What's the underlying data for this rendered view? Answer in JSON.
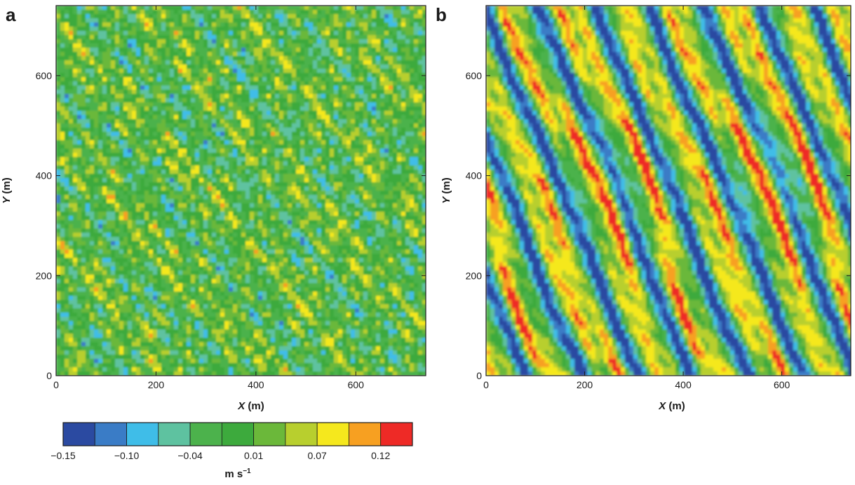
{
  "figure": {
    "panels": [
      {
        "letter": "a"
      },
      {
        "letter": "b"
      }
    ],
    "colorbar": {
      "tick_labels": [
        "−0.15",
        "−0.10",
        "−0.04",
        "0.01",
        "0.07",
        "0.12"
      ],
      "unit_main": "m s",
      "unit_exp": "−1"
    }
  },
  "chart_data": [
    {
      "type": "heatmap",
      "panel": "a",
      "title": "",
      "xlabel_var": "X",
      "xlabel_unit": " (m)",
      "ylabel_var": "Y",
      "ylabel_unit": " (m)",
      "xlim": [
        0,
        740
      ],
      "ylim": [
        0,
        740
      ],
      "xticks": [
        0,
        200,
        400,
        600
      ],
      "yticks": [
        0,
        200,
        400,
        600
      ],
      "value_range": [
        -0.15,
        0.15
      ],
      "pattern": "small isotropic eddies, values mostly near 0 with scattered extremes"
    },
    {
      "type": "heatmap",
      "panel": "b",
      "title": "",
      "xlabel_var": "X",
      "xlabel_unit": " (m)",
      "ylabel_var": "Y",
      "ylabel_unit": " (m)",
      "xlim": [
        0,
        740
      ],
      "ylim": [
        0,
        740
      ],
      "xticks": [
        0,
        200,
        400,
        600
      ],
      "yticks": [
        0,
        200,
        400,
        600
      ],
      "value_range": [
        -0.15,
        0.15
      ],
      "pattern": "elongated streaks tilted from vertical, alternating strong positive and negative bands"
    }
  ],
  "colors": {
    "scale": [
      "#2b4aa1",
      "#3a7cc6",
      "#3fbde8",
      "#5ec2a0",
      "#4cb24c",
      "#3daa3d",
      "#6bb83a",
      "#b8cf2e",
      "#f5e81d",
      "#f7a021",
      "#ee2a26"
    ],
    "frame": "#1a1a1a"
  }
}
